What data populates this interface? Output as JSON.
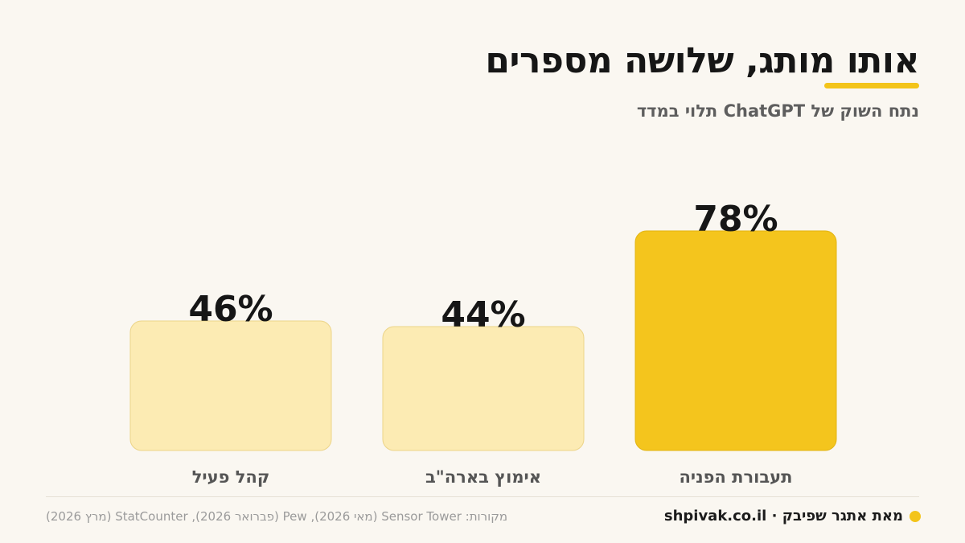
{
  "header": {
    "title": "אותו מותג, שלושה מספרים",
    "subtitle": "נתח השוק של ChatGPT תלוי במדד"
  },
  "colors": {
    "accent": "#f3c41a",
    "bar_highlight": "#f4c51d",
    "bar_muted": "#fcebb3",
    "bar_muted_border": "#ecd488"
  },
  "chart_data": {
    "type": "bar",
    "categories": [
      "תעבורת הפניה",
      "אימוץ בארה\"ב",
      "קהל פעיל"
    ],
    "values": [
      78,
      44,
      46
    ],
    "value_labels": [
      "78%",
      "44%",
      "46%"
    ],
    "highlight_index": 0,
    "ylim": [
      0,
      100
    ],
    "grid": false
  },
  "footer": {
    "credit": "מאת אתגר שפיבק · shpivak.co.il",
    "sources": "מקורות: Sensor Tower (מאי 2026), Pew (פברואר 2026), StatCounter (מרץ 2026)"
  }
}
